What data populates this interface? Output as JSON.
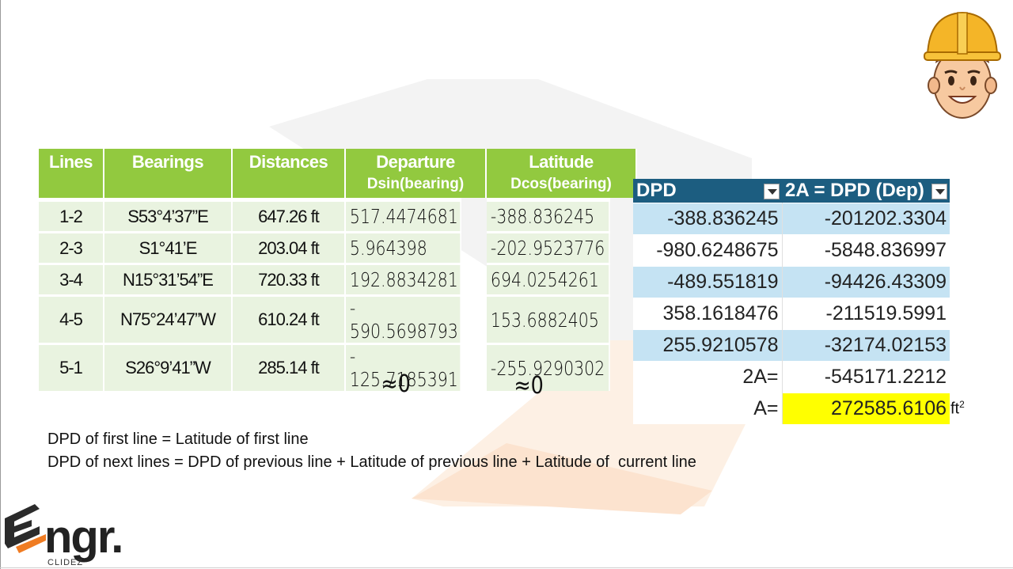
{
  "survey_table": {
    "headers": [
      {
        "label": "Lines",
        "sub": ""
      },
      {
        "label": "Bearings",
        "sub": ""
      },
      {
        "label": "Distances",
        "sub": ""
      },
      {
        "label": "Departure",
        "sub": "Dsin(bearing)"
      },
      {
        "label": "Latitude",
        "sub": "Dcos(bearing)"
      }
    ],
    "rows": [
      {
        "line": "1-2",
        "bearing": "S53°4’37”E",
        "distance": "647.26 ft",
        "departure": "517.4474681",
        "latitude": "-388.836245"
      },
      {
        "line": "2-3",
        "bearing": "S1°41’E",
        "distance": "203.04 ft",
        "departure": "5.964398",
        "latitude": "-202.9523776"
      },
      {
        "line": "3-4",
        "bearing": "N15°31’54”E",
        "distance": "720.33 ft",
        "departure": "192.8834281",
        "latitude": "694.0254261"
      },
      {
        "line": "4-5",
        "bearing": "N75°24’47”W",
        "distance": "610.24 ft",
        "departure": "- 590.5698793",
        "latitude": "153.6882405"
      },
      {
        "line": "5-1",
        "bearing": "S26°9’41”W",
        "distance": "285.14 ft",
        "departure": "- 125.7185391",
        "latitude": "-255.9290302"
      }
    ],
    "sum_departure": "≈0",
    "sum_latitude": "≈0"
  },
  "dpd_table": {
    "header_dpd": "DPD",
    "header_2a": "2A = DPD (Dep)",
    "rows": [
      {
        "dpd": "-388.836245",
        "twoA": "-201202.3304"
      },
      {
        "dpd": "-980.6248675",
        "twoA": "-5848.836997"
      },
      {
        "dpd": "-489.551819",
        "twoA": "-94426.43309"
      },
      {
        "dpd": "358.1618476",
        "twoA": "-211519.5991"
      },
      {
        "dpd": "255.9210578",
        "twoA": "-32174.02153"
      }
    ],
    "total_label": "2A=",
    "total_value": "-545171.2212",
    "area_label": "A=",
    "area_value": "272585.6106",
    "area_unit": "ft",
    "area_unit_exp": "2",
    "highlight_color": "#ffff00"
  },
  "notes": {
    "line1": "DPD of first line = Latitude of first line",
    "line2": "DPD of next lines = DPD of previous line + Latitude of previous line + Latitude of  current line"
  },
  "logo": {
    "text": "ngr.",
    "sub": "CLIDEZ",
    "accent_color": "#f07c22"
  },
  "colors": {
    "header_green": "#92c93f",
    "row_green": "#e9f3e0",
    "header_blue": "#1c5d80",
    "row_blue": "#c5e3f3"
  },
  "icons": {
    "avatar": "engineer-avatar-icon",
    "dropdown": "dropdown-arrow-icon"
  }
}
